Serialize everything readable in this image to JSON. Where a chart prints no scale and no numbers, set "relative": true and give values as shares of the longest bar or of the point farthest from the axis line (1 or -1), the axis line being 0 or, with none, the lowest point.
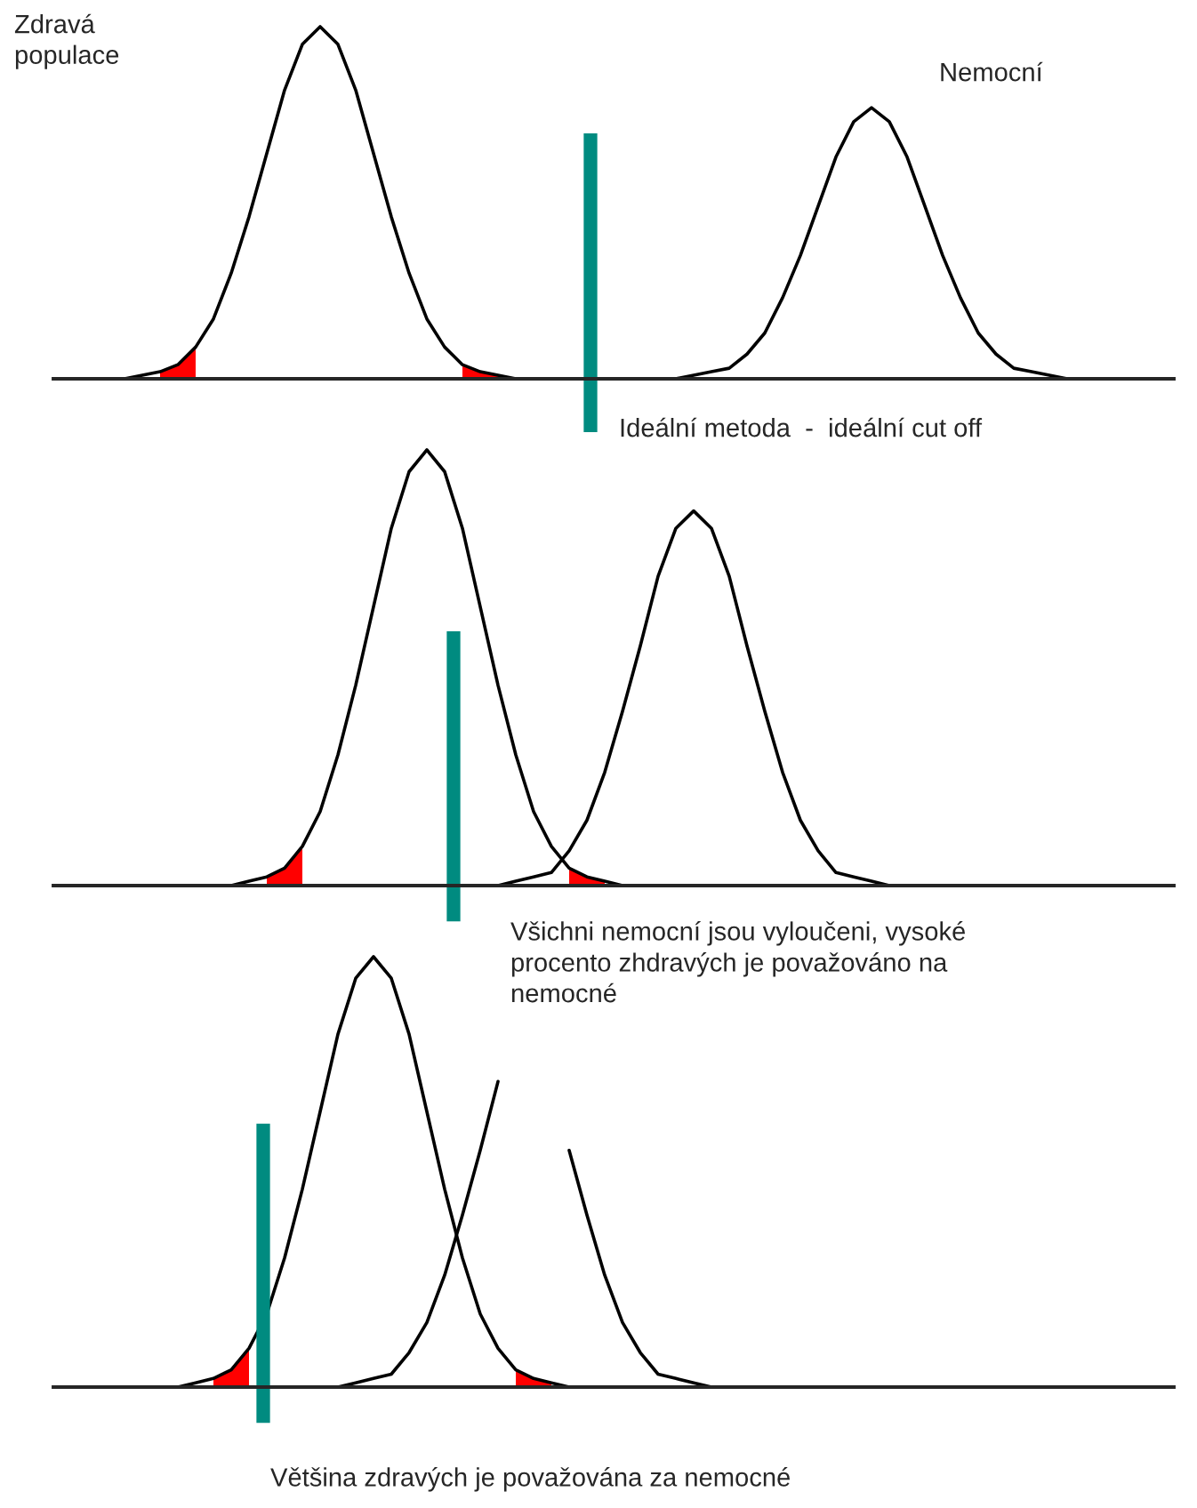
{
  "chart_data": [
    {
      "type": "line",
      "relative": true,
      "categories": [
        null,
        null,
        null,
        null,
        null,
        null,
        null,
        null,
        null,
        null,
        null,
        null,
        null,
        null,
        null,
        null,
        null,
        null,
        null,
        null,
        null,
        null,
        null,
        null,
        null,
        null,
        null,
        null,
        null,
        null,
        null,
        null,
        null,
        null,
        null,
        null,
        null,
        null,
        null,
        null,
        null,
        null,
        null,
        null,
        null,
        null,
        null,
        null,
        null,
        null,
        null,
        null,
        null,
        null,
        null,
        null,
        null,
        null,
        null,
        null,
        null,
        null,
        null,
        null
      ],
      "annotations": [
        "Zdravá\npopulace",
        "Nemocní",
        "Ideální metoda  -  ideální cut off"
      ],
      "series": [
        {
          "color": "#000000",
          "values": [
            null,
            0,
            0,
            0,
            0,
            0.01,
            0.02,
            0.04,
            0.09,
            0.17,
            0.3,
            0.46,
            0.64,
            0.82,
            0.95,
            1,
            0.95,
            0.82,
            0.64,
            0.46,
            0.3,
            0.17,
            0.09,
            0.04,
            0.02,
            0.01,
            0,
            0,
            null,
            null,
            null,
            null,
            null,
            null,
            null,
            null,
            null,
            null,
            null,
            null,
            null,
            null,
            null,
            null,
            null,
            null,
            null,
            null,
            null,
            null,
            null,
            null,
            null,
            null,
            null,
            null,
            null,
            null,
            null,
            null,
            null,
            null,
            null,
            null
          ]
        },
        {
          "color": "#000000",
          "values": [
            null,
            null,
            null,
            null,
            null,
            null,
            null,
            null,
            null,
            null,
            null,
            null,
            null,
            null,
            null,
            null,
            null,
            null,
            null,
            null,
            null,
            null,
            null,
            null,
            null,
            null,
            null,
            null,
            null,
            null,
            null,
            null,
            0,
            0,
            0,
            0,
            0.01,
            0.02,
            0.03,
            0.07,
            0.13,
            0.23,
            0.35,
            0.49,
            0.63,
            0.73,
            0.77,
            0.73,
            0.63,
            0.49,
            0.35,
            0.23,
            0.13,
            0.07,
            0.03,
            0.02,
            0.01,
            0,
            0,
            0,
            0,
            null,
            null,
            null
          ]
        },
        {
          "type": "area",
          "color": "#ff0000",
          "values": [
            null,
            null,
            null,
            null,
            null,
            null,
            0.02,
            0.04,
            0.09,
            null,
            null,
            null,
            null,
            null,
            null,
            null,
            null,
            null,
            null,
            null,
            null,
            null,
            null,
            0.04,
            0.02,
            0.01,
            0,
            null,
            null,
            null,
            null,
            null,
            null,
            null,
            null,
            null,
            null,
            null,
            null,
            null,
            null,
            null,
            null,
            null,
            null,
            null,
            null,
            null,
            null,
            null,
            null,
            null,
            null,
            null,
            null,
            null,
            null,
            null,
            null,
            null,
            null,
            null,
            null,
            null
          ]
        }
      ]
    },
    {
      "type": "line",
      "relative": true,
      "categories": [
        null,
        null,
        null,
        null,
        null,
        null,
        null,
        null,
        null,
        null,
        null,
        null,
        null,
        null,
        null,
        null,
        null,
        null,
        null,
        null,
        null,
        null,
        null,
        null,
        null,
        null,
        null,
        null,
        null,
        null,
        null,
        null,
        null,
        null,
        null,
        null,
        null,
        null,
        null,
        null,
        null,
        null,
        null,
        null,
        null,
        null,
        null,
        null,
        null,
        null,
        null,
        null,
        null,
        null,
        null,
        null,
        null,
        null,
        null,
        null,
        null,
        null,
        null,
        null
      ],
      "annotations": [
        "Všichni nemocní jsou vyloučeni, vysoké\nprocento zhdravých je považováno na\nnemocné"
      ],
      "series": [
        {
          "color": "#000000",
          "values": [
            null,
            null,
            null,
            null,
            null,
            null,
            null,
            0,
            0,
            0,
            0,
            0.01,
            0.02,
            0.04,
            0.09,
            0.17,
            0.3,
            0.46,
            0.64,
            0.82,
            0.95,
            1,
            0.95,
            0.82,
            0.64,
            0.46,
            0.3,
            0.17,
            0.09,
            0.04,
            0.02,
            0.01,
            0,
            0,
            0,
            0,
            0,
            null,
            null,
            null,
            null,
            null,
            null,
            null,
            null,
            null,
            null,
            null,
            null,
            null,
            null,
            null,
            null,
            null,
            null,
            null,
            null,
            null,
            null,
            null,
            null,
            null,
            null,
            null
          ]
        },
        {
          "color": "#000000",
          "values": [
            null,
            null,
            null,
            null,
            null,
            null,
            null,
            null,
            null,
            null,
            null,
            null,
            null,
            null,
            null,
            null,
            null,
            null,
            null,
            null,
            null,
            null,
            null,
            null,
            0,
            0,
            0.01,
            0.02,
            0.03,
            0.08,
            0.15,
            0.26,
            0.4,
            0.55,
            0.71,
            0.82,
            0.86,
            0.82,
            0.71,
            0.55,
            0.4,
            0.26,
            0.15,
            0.08,
            0.03,
            0.02,
            0.01,
            0,
            0,
            null,
            null,
            null,
            null,
            null,
            null,
            null,
            null,
            null,
            null,
            null,
            null,
            null,
            null,
            null
          ]
        },
        {
          "type": "area",
          "color": "#ff0000",
          "values": [
            null,
            null,
            null,
            null,
            null,
            null,
            null,
            null,
            null,
            null,
            null,
            null,
            0.02,
            0.04,
            0.09,
            null,
            null,
            null,
            null,
            null,
            null,
            null,
            null,
            null,
            null,
            null,
            null,
            null,
            null,
            0.04,
            0.02,
            0.01,
            null,
            null,
            null,
            null,
            null,
            null,
            null,
            null,
            null,
            null,
            null,
            null,
            null,
            null,
            null,
            null,
            null,
            null,
            null,
            null,
            null,
            null,
            null,
            null,
            null,
            null,
            null,
            null,
            null,
            null,
            null,
            null
          ]
        }
      ]
    },
    {
      "type": "line",
      "relative": true,
      "categories": [
        null,
        null,
        null,
        null,
        null,
        null,
        null,
        null,
        null,
        null,
        null,
        null,
        null,
        null,
        null,
        null,
        null,
        null,
        null,
        null,
        null,
        null,
        null,
        null,
        null,
        null,
        null,
        null,
        null,
        null,
        null,
        null,
        null,
        null,
        null,
        null,
        null,
        null,
        null,
        null,
        null,
        null,
        null,
        null,
        null,
        null,
        null,
        null,
        null,
        null,
        null,
        null,
        null,
        null,
        null,
        null,
        null,
        null,
        null,
        null,
        null,
        null,
        null,
        null
      ],
      "annotations": [
        "Většina zdravých je považována za nemocné"
      ],
      "series": [
        {
          "color": "#000000",
          "values": [
            null,
            null,
            null,
            null,
            null,
            null,
            0,
            0,
            0.01,
            0.02,
            0.04,
            0.09,
            0.17,
            0.3,
            0.46,
            0.64,
            0.82,
            0.95,
            1,
            0.95,
            0.82,
            0.64,
            0.46,
            0.3,
            0.17,
            0.09,
            0.04,
            0.02,
            0.01,
            0,
            0,
            null,
            null,
            null,
            null,
            null,
            null,
            null,
            null,
            null,
            null,
            null,
            null,
            null,
            null,
            null,
            null,
            null,
            null,
            null,
            null,
            null,
            null,
            null,
            null,
            null,
            null,
            null,
            null,
            null,
            null,
            null,
            null,
            null
          ]
        },
        {
          "color": "#000000",
          "values": [
            null,
            null,
            null,
            null,
            null,
            null,
            null,
            null,
            null,
            null,
            null,
            null,
            null,
            null,
            null,
            0,
            0,
            0.01,
            0.02,
            0.03,
            0.08,
            0.15,
            0.26,
            0.4,
            0.55,
            0.71,
            null,
            null,
            null,
            0.55,
            0.4,
            0.26,
            0.15,
            0.08,
            0.03,
            0.02,
            0.01,
            0,
            0,
            0,
            0,
            null,
            null,
            null,
            null,
            null,
            null,
            null,
            null,
            null,
            null,
            null,
            null,
            null,
            null,
            null,
            null,
            null,
            null,
            null,
            null,
            null,
            null,
            null
          ]
        },
        {
          "type": "area",
          "color": "#ff0000",
          "values": [
            null,
            null,
            null,
            null,
            null,
            null,
            null,
            null,
            null,
            0.02,
            0.04,
            0.09,
            null,
            null,
            null,
            null,
            null,
            null,
            null,
            null,
            null,
            null,
            null,
            null,
            null,
            null,
            0.04,
            0.02,
            0.01,
            null,
            null,
            null,
            null,
            null,
            null,
            null,
            null,
            null,
            null,
            null,
            null,
            null,
            null,
            null,
            null,
            null,
            null,
            null,
            null,
            null,
            null,
            null,
            null,
            null,
            null,
            null,
            null,
            null,
            null,
            null,
            null,
            null,
            null,
            null
          ]
        }
      ]
    }
  ]
}
